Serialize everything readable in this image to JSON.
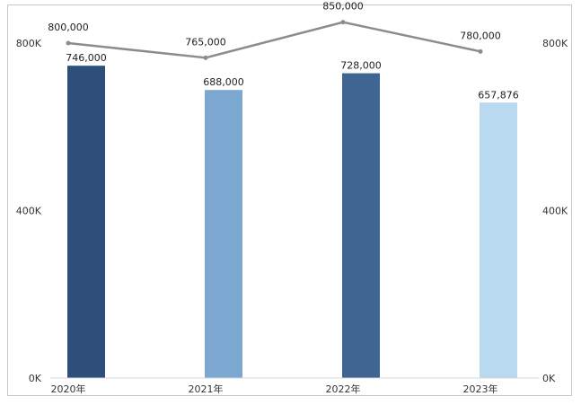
{
  "chart_data": {
    "type": "bar",
    "categories": [
      "2020年",
      "2021年",
      "2022年",
      "2023年"
    ],
    "series": [
      {
        "values": [
          746000,
          688000,
          728000,
          657876
        ],
        "value_labels": [
          "746,000",
          "688,000",
          "728,000",
          "657,876"
        ],
        "colors": [
          "#2e4f79",
          "#7ba7d1",
          "#3f6593",
          "#b8d9ef"
        ]
      },
      {
        "type": "line",
        "values": [
          800000,
          765000,
          850000,
          780000
        ],
        "value_labels": [
          "800,000",
          "765,000",
          "850,000",
          "780,000"
        ],
        "color": "#8c8c8c"
      }
    ],
    "y_axis_left": {
      "ticks": [
        "800K",
        "400K",
        "0K"
      ],
      "tick_values": [
        800000,
        400000,
        0
      ]
    },
    "y_axis_right": {
      "ticks": [
        "800K",
        "400K",
        "0K"
      ],
      "tick_values": [
        800000,
        400000,
        0
      ]
    },
    "ylim": [
      0,
      800000
    ],
    "grid": false,
    "legend": "none",
    "title": "",
    "xlabel": "",
    "ylabel": ""
  }
}
